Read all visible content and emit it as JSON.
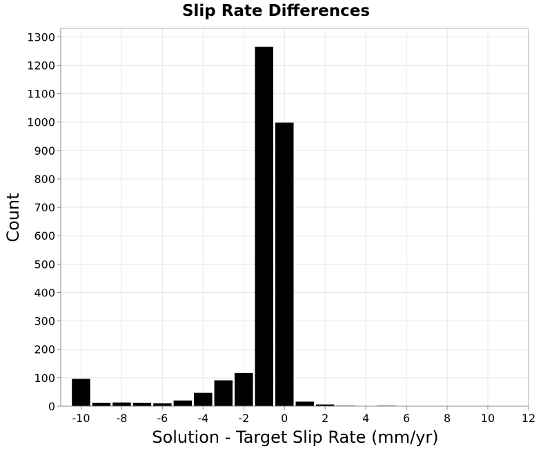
{
  "chart_data": {
    "type": "bar",
    "title": "Slip Rate Differences",
    "xlabel": "Solution - Target Slip Rate (mm/yr)",
    "ylabel": "Count",
    "xlim": [
      -11,
      12
    ],
    "ylim": [
      0,
      1330
    ],
    "xticks": [
      -10,
      -8,
      -6,
      -4,
      -2,
      0,
      2,
      4,
      6,
      8,
      10,
      12
    ],
    "yticks": [
      0,
      100,
      200,
      300,
      400,
      500,
      600,
      700,
      800,
      900,
      1000,
      1100,
      1200,
      1300
    ],
    "bin_width": 1,
    "x": [
      -10,
      -9,
      -8,
      -7,
      -6,
      -5,
      -4,
      -3,
      -2,
      -1,
      0,
      1,
      2,
      3,
      4,
      5,
      6,
      7,
      8,
      9,
      10,
      11
    ],
    "values": [
      96,
      12,
      13,
      12,
      10,
      20,
      47,
      91,
      117,
      1265,
      998,
      16,
      6,
      2,
      0,
      2,
      0,
      0,
      0,
      0,
      0,
      0
    ],
    "grid": true,
    "bar_color": "#000000",
    "grid_color": "#e6e6e6"
  }
}
